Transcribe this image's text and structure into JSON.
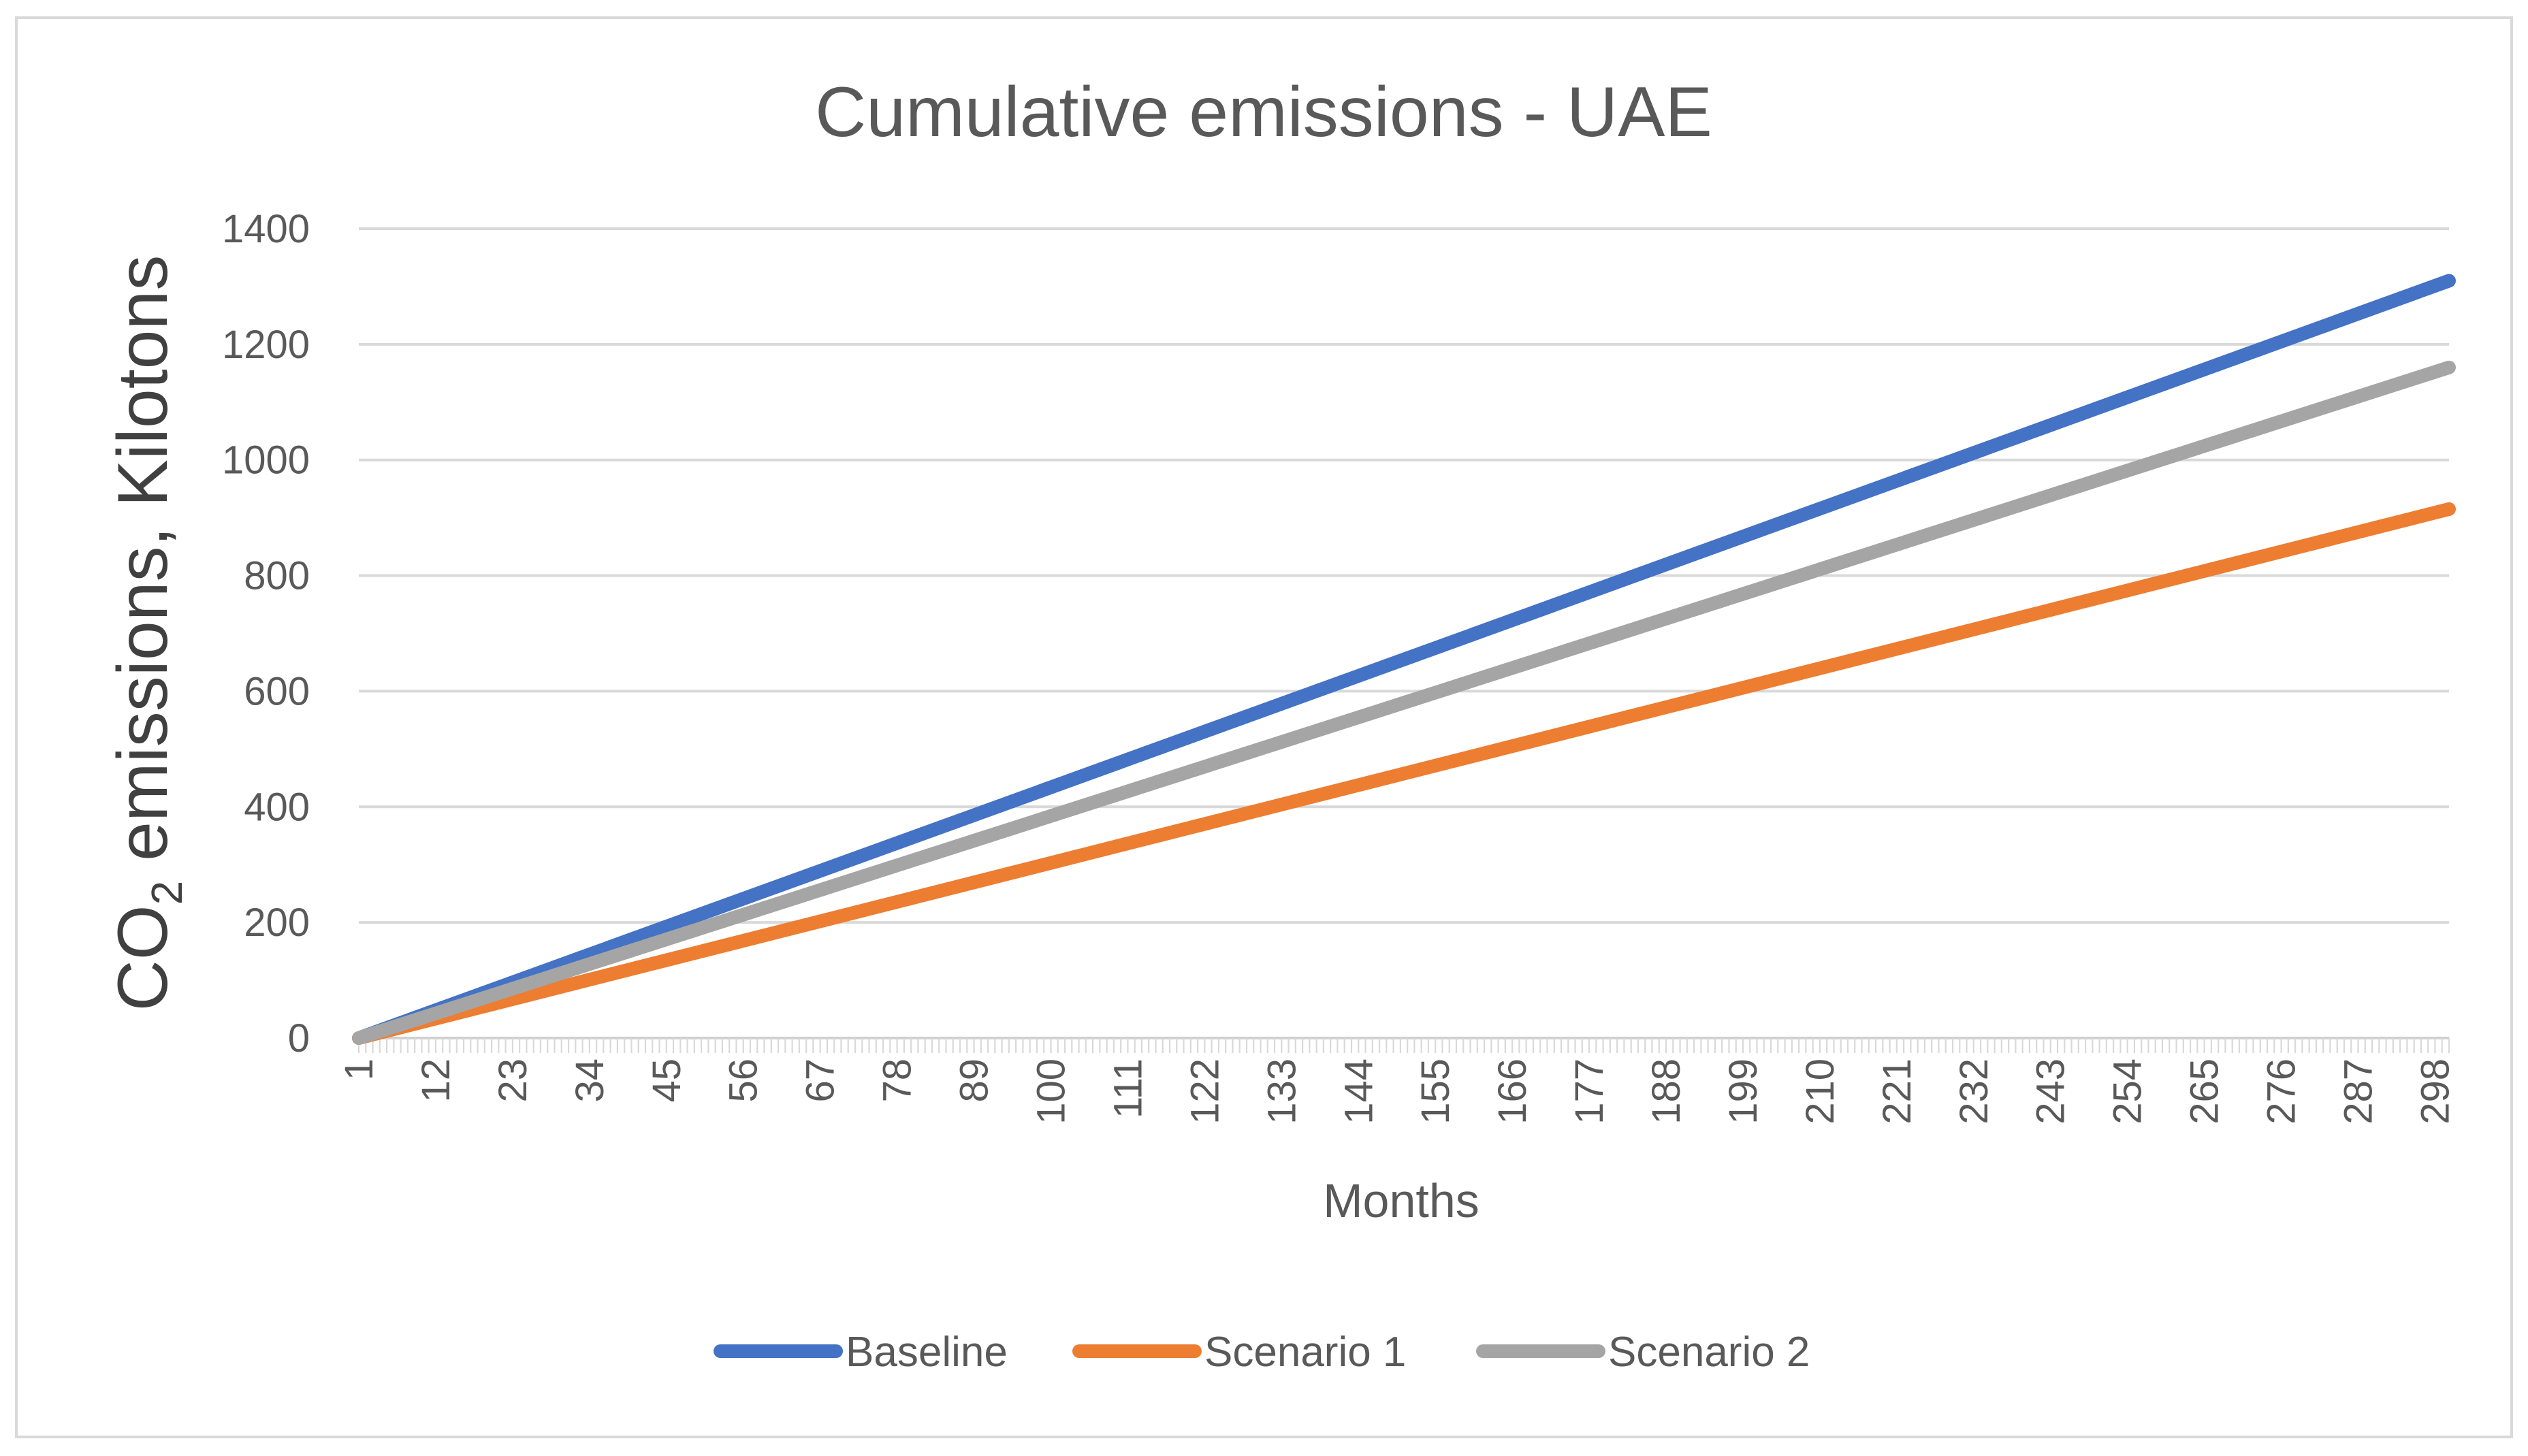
{
  "chart_data": {
    "type": "line",
    "title": "Cumulative emissions - UAE",
    "xlabel": "Months",
    "ylabel": {
      "prefix": "CO",
      "subscript": "2",
      "suffix": " emissions, Kilotons"
    },
    "x_range": [
      1,
      300
    ],
    "x_tick_labels": [
      "1",
      "12",
      "23",
      "34",
      "45",
      "56",
      "67",
      "78",
      "89",
      "100",
      "111",
      "122",
      "133",
      "144",
      "155",
      "166",
      "177",
      "188",
      "199",
      "210",
      "221",
      "232",
      "243",
      "254",
      "265",
      "276",
      "287",
      "298"
    ],
    "ylim": [
      0,
      1400
    ],
    "y_ticks": [
      0,
      200,
      400,
      600,
      800,
      1000,
      1200,
      1400
    ],
    "grid": true,
    "legend_position": "bottom",
    "series": [
      {
        "name": "Baseline",
        "color": "#4472C4",
        "x": [
          1,
          300
        ],
        "values": [
          0,
          1310
        ]
      },
      {
        "name": "Scenario 1",
        "color": "#ED7D31",
        "x": [
          1,
          300
        ],
        "values": [
          0,
          915
        ]
      },
      {
        "name": "Scenario 2",
        "color": "#A5A5A5",
        "x": [
          1,
          300
        ],
        "values": [
          0,
          1160
        ]
      }
    ]
  }
}
